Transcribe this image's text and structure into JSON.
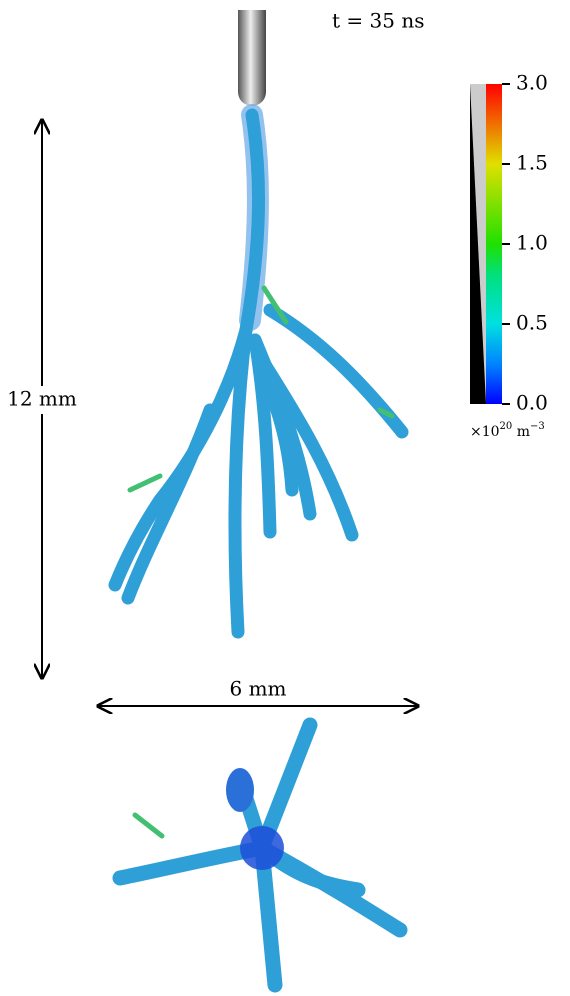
{
  "time_label": "t = 35 ns",
  "colorbar": {
    "ticks": [
      "3.0",
      "1.5",
      "1.0",
      "0.5",
      "0.0"
    ],
    "unit": {
      "mantissa": "×10",
      "exponent": "20",
      "unit": "m",
      "unit_exponent": "−3"
    }
  },
  "scale_bars": {
    "vertical": "12 mm",
    "horizontal": "6 mm"
  }
}
